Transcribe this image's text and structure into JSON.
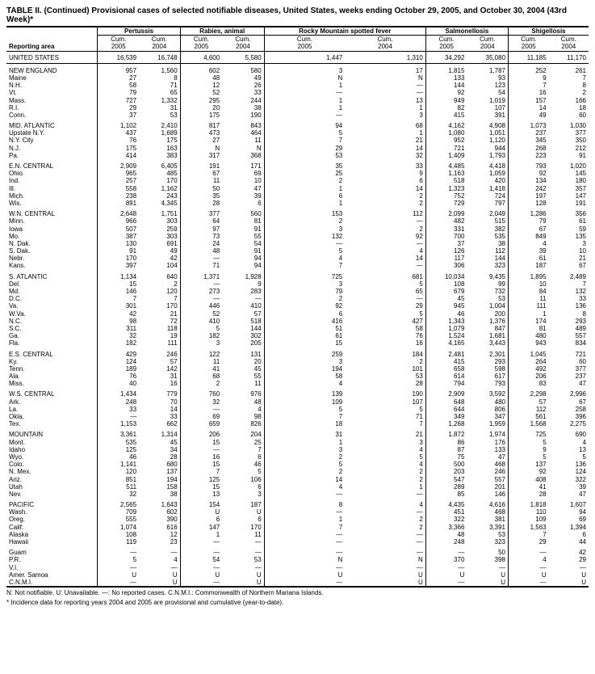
{
  "title": "TABLE II. (Continued) Provisional cases of selected notifiable diseases, United States, weeks ending October 29, 2005, and October 30, 2004 (43rd Week)*",
  "diseases": [
    "Pertussis",
    "Rabies, animal",
    "Rocky Mountain spotted fever",
    "Salmonellosis",
    "Shigellosis"
  ],
  "sub_headers": [
    "Cum. 2005",
    "Cum. 2004"
  ],
  "reporting_area_label": "Reporting area",
  "us_row": {
    "label": "UNITED STATES",
    "values": [
      "16,539",
      "16,748",
      "4,600",
      "5,580",
      "1,447",
      "1,310",
      "34,292",
      "35,080",
      "11,185",
      "11,170"
    ]
  },
  "regions": [
    {
      "header": {
        "label": "NEW ENGLAND",
        "values": [
          "957",
          "1,560",
          "602",
          "580",
          "3",
          "17",
          "1,815",
          "1,787",
          "252",
          "261"
        ]
      },
      "rows": [
        {
          "label": "Maine",
          "values": [
            "27",
            "8",
            "48",
            "49",
            "N",
            "N",
            "133",
            "93",
            "9",
            "7"
          ]
        },
        {
          "label": "N.H.",
          "values": [
            "58",
            "71",
            "12",
            "26",
            "1",
            "—",
            "144",
            "123",
            "7",
            "8"
          ]
        },
        {
          "label": "Vt.",
          "values": [
            "79",
            "65",
            "52",
            "33",
            "—",
            "—",
            "92",
            "54",
            "16",
            "2"
          ]
        },
        {
          "label": "Mass.",
          "values": [
            "727",
            "1,332",
            "295",
            "244",
            "1",
            "13",
            "949",
            "1,019",
            "157",
            "166"
          ]
        },
        {
          "label": "R.I.",
          "values": [
            "29",
            "31",
            "20",
            "38",
            "1",
            "1",
            "82",
            "107",
            "14",
            "18"
          ]
        },
        {
          "label": "Conn.",
          "values": [
            "37",
            "53",
            "175",
            "190",
            "—",
            "3",
            "415",
            "391",
            "49",
            "60"
          ]
        }
      ]
    },
    {
      "header": {
        "label": "MID. ATLANTIC",
        "values": [
          "1,102",
          "2,410",
          "817",
          "843",
          "94",
          "68",
          "4,162",
          "4,908",
          "1,073",
          "1,030"
        ]
      },
      "rows": [
        {
          "label": "Upstate N.Y.",
          "values": [
            "437",
            "1,689",
            "473",
            "464",
            "5",
            "1",
            "1,080",
            "1,051",
            "237",
            "377"
          ]
        },
        {
          "label": "N.Y. City",
          "values": [
            "76",
            "175",
            "27",
            "11",
            "7",
            "21",
            "952",
            "1,120",
            "345",
            "350"
          ]
        },
        {
          "label": "N.J.",
          "values": [
            "175",
            "163",
            "N",
            "N",
            "29",
            "14",
            "721",
            "944",
            "268",
            "212"
          ]
        },
        {
          "label": "Pa.",
          "values": [
            "414",
            "383",
            "317",
            "368",
            "53",
            "32",
            "1,409",
            "1,793",
            "223",
            "91"
          ]
        }
      ]
    },
    {
      "header": {
        "label": "E.N. CENTRAL",
        "values": [
          "2,909",
          "6,405",
          "191",
          "171",
          "35",
          "33",
          "4,485",
          "4,418",
          "793",
          "1,020"
        ]
      },
      "rows": [
        {
          "label": "Ohio",
          "values": [
            "965",
            "485",
            "67",
            "69",
            "25",
            "9",
            "1,163",
            "1,059",
            "92",
            "145"
          ]
        },
        {
          "label": "Ind.",
          "values": [
            "257",
            "170",
            "11",
            "10",
            "2",
            "6",
            "518",
            "420",
            "134",
            "180"
          ]
        },
        {
          "label": "Ill.",
          "values": [
            "558",
            "1,162",
            "50",
            "47",
            "1",
            "14",
            "1,323",
            "1,418",
            "242",
            "357"
          ]
        },
        {
          "label": "Mich.",
          "values": [
            "238",
            "243",
            "35",
            "39",
            "6",
            "2",
            "752",
            "724",
            "197",
            "147"
          ]
        },
        {
          "label": "Wis.",
          "values": [
            "891",
            "4,345",
            "28",
            "6",
            "1",
            "2",
            "729",
            "797",
            "128",
            "191"
          ]
        }
      ]
    },
    {
      "header": {
        "label": "W.N. CENTRAL",
        "values": [
          "2,648",
          "1,751",
          "377",
          "560",
          "153",
          "112",
          "2,099",
          "2,049",
          "1,286",
          "356"
        ]
      },
      "rows": [
        {
          "label": "Minn.",
          "values": [
            "966",
            "303",
            "64",
            "81",
            "2",
            "—",
            "482",
            "515",
            "79",
            "61"
          ]
        },
        {
          "label": "Iowa",
          "values": [
            "507",
            "259",
            "97",
            "91",
            "3",
            "2",
            "331",
            "382",
            "67",
            "59"
          ]
        },
        {
          "label": "Mo.",
          "values": [
            "387",
            "303",
            "73",
            "55",
            "132",
            "92",
            "700",
            "535",
            "849",
            "135"
          ]
        },
        {
          "label": "N. Dak.",
          "values": [
            "130",
            "691",
            "24",
            "54",
            "—",
            "—",
            "37",
            "38",
            "4",
            "3"
          ]
        },
        {
          "label": "S. Dak.",
          "values": [
            "91",
            "49",
            "48",
            "91",
            "5",
            "4",
            "126",
            "112",
            "39",
            "10"
          ]
        },
        {
          "label": "Nebr.",
          "values": [
            "170",
            "42",
            "—",
            "94",
            "4",
            "14",
            "117",
            "144",
            "61",
            "21"
          ]
        },
        {
          "label": "Kans.",
          "values": [
            "397",
            "104",
            "71",
            "94",
            "7",
            "—",
            "306",
            "323",
            "187",
            "67"
          ]
        }
      ]
    },
    {
      "header": {
        "label": "S. ATLANTIC",
        "values": [
          "1,134",
          "640",
          "1,371",
          "1,928",
          "725",
          "681",
          "10,034",
          "9,435",
          "1,895",
          "2,489"
        ]
      },
      "rows": [
        {
          "label": "Del.",
          "values": [
            "15",
            "2",
            "—",
            "9",
            "3",
            "5",
            "108",
            "99",
            "10",
            "7"
          ]
        },
        {
          "label": "Md.",
          "values": [
            "146",
            "120",
            "273",
            "283",
            "79",
            "65",
            "679",
            "732",
            "84",
            "132"
          ]
        },
        {
          "label": "D.C.",
          "values": [
            "7",
            "7",
            "—",
            "—",
            "2",
            "—",
            "45",
            "53",
            "11",
            "33"
          ]
        },
        {
          "label": "Va.",
          "values": [
            "301",
            "170",
            "446",
            "410",
            "92",
            "29",
            "945",
            "1,004",
            "111",
            "136"
          ]
        },
        {
          "label": "W.Va.",
          "values": [
            "42",
            "21",
            "52",
            "57",
            "6",
            "5",
            "46",
            "200",
            "1",
            "8"
          ]
        },
        {
          "label": "N.C.",
          "values": [
            "98",
            "72",
            "410",
            "518",
            "416",
            "427",
            "1,343",
            "1,376",
            "174",
            "293"
          ]
        },
        {
          "label": "S.C.",
          "values": [
            "311",
            "118",
            "5",
            "144",
            "51",
            "58",
            "1,079",
            "847",
            "81",
            "489"
          ]
        },
        {
          "label": "Ga.",
          "values": [
            "32",
            "19",
            "182",
            "302",
            "61",
            "76",
            "1,524",
            "1,681",
            "480",
            "557"
          ]
        },
        {
          "label": "Fla.",
          "values": [
            "182",
            "111",
            "3",
            "205",
            "15",
            "16",
            "4,165",
            "3,443",
            "943",
            "834"
          ]
        }
      ]
    },
    {
      "header": {
        "label": "E.S. CENTRAL",
        "values": [
          "429",
          "246",
          "122",
          "131",
          "259",
          "184",
          "2,481",
          "2,301",
          "1,045",
          "721"
        ]
      },
      "rows": [
        {
          "label": "Ky.",
          "values": [
            "124",
            "57",
            "11",
            "20",
            "3",
            "2",
            "415",
            "293",
            "264",
            "60"
          ]
        },
        {
          "label": "Tenn.",
          "values": [
            "189",
            "142",
            "41",
            "45",
            "194",
            "101",
            "658",
            "598",
            "492",
            "377"
          ]
        },
        {
          "label": "Ala.",
          "values": [
            "76",
            "31",
            "68",
            "55",
            "58",
            "53",
            "614",
            "617",
            "206",
            "237"
          ]
        },
        {
          "label": "Miss.",
          "values": [
            "40",
            "16",
            "2",
            "11",
            "4",
            "28",
            "794",
            "793",
            "83",
            "47"
          ]
        }
      ]
    },
    {
      "header": {
        "label": "W.S. CENTRAL",
        "values": [
          "1,434",
          "779",
          "760",
          "976",
          "139",
          "190",
          "2,909",
          "3,592",
          "2,298",
          "2,996"
        ]
      },
      "rows": [
        {
          "label": "Ark.",
          "values": [
            "248",
            "70",
            "32",
            "48",
            "109",
            "107",
            "648",
            "480",
            "57",
            "67"
          ]
        },
        {
          "label": "La.",
          "values": [
            "33",
            "14",
            "—",
            "4",
            "5",
            "5",
            "644",
            "806",
            "112",
            "258"
          ]
        },
        {
          "label": "Okla.",
          "values": [
            "—",
            "33",
            "69",
            "98",
            "7",
            "71",
            "349",
            "347",
            "561",
            "396"
          ]
        },
        {
          "label": "Tex.",
          "values": [
            "1,153",
            "662",
            "659",
            "826",
            "18",
            "7",
            "1,268",
            "1,959",
            "1,568",
            "2,275"
          ]
        }
      ]
    },
    {
      "header": {
        "label": "MOUNTAIN",
        "values": [
          "3,361",
          "1,314",
          "206",
          "204",
          "31",
          "21",
          "1,872",
          "1,974",
          "725",
          "690"
        ]
      },
      "rows": [
        {
          "label": "Mont.",
          "values": [
            "535",
            "45",
            "15",
            "25",
            "1",
            "3",
            "86",
            "176",
            "5",
            "4"
          ]
        },
        {
          "label": "Idaho",
          "values": [
            "125",
            "34",
            "—",
            "7",
            "3",
            "4",
            "87",
            "133",
            "9",
            "13"
          ]
        },
        {
          "label": "Wyo.",
          "values": [
            "46",
            "28",
            "16",
            "6",
            "2",
            "5",
            "75",
            "47",
            "5",
            "5"
          ]
        },
        {
          "label": "Colo.",
          "values": [
            "1,141",
            "680",
            "15",
            "46",
            "5",
            "4",
            "500",
            "468",
            "137",
            "136"
          ]
        },
        {
          "label": "N. Mex.",
          "values": [
            "120",
            "137",
            "7",
            "5",
            "2",
            "2",
            "203",
            "246",
            "92",
            "124"
          ]
        },
        {
          "label": "Ariz.",
          "values": [
            "851",
            "194",
            "125",
            "106",
            "14",
            "2",
            "547",
            "557",
            "408",
            "322"
          ]
        },
        {
          "label": "Utah",
          "values": [
            "511",
            "158",
            "15",
            "6",
            "4",
            "1",
            "289",
            "201",
            "41",
            "39"
          ]
        },
        {
          "label": "Nev.",
          "values": [
            "32",
            "38",
            "13",
            "3",
            "—",
            "—",
            "85",
            "146",
            "28",
            "47"
          ]
        }
      ]
    },
    {
      "header": {
        "label": "PACIFIC",
        "values": [
          "2,565",
          "1,643",
          "154",
          "187",
          "8",
          "4",
          "4,435",
          "4,616",
          "1,818",
          "1,607"
        ]
      },
      "rows": [
        {
          "label": "Wash.",
          "values": [
            "709",
            "602",
            "U",
            "U",
            "—",
            "—",
            "451",
            "468",
            "110",
            "94"
          ]
        },
        {
          "label": "Oreg.",
          "values": [
            "555",
            "390",
            "6",
            "6",
            "1",
            "2",
            "322",
            "381",
            "109",
            "69"
          ]
        },
        {
          "label": "Calif.",
          "values": [
            "1,074",
            "616",
            "147",
            "170",
            "7",
            "2",
            "3,366",
            "3,391",
            "1,563",
            "1,394"
          ]
        },
        {
          "label": "Alaska",
          "values": [
            "108",
            "12",
            "1",
            "11",
            "—",
            "—",
            "48",
            "53",
            "7",
            "6"
          ]
        },
        {
          "label": "Hawaii",
          "values": [
            "119",
            "23",
            "—",
            "—",
            "—",
            "—",
            "248",
            "323",
            "29",
            "44"
          ]
        }
      ]
    },
    {
      "header": {
        "label": "Guam",
        "values": [
          "—",
          "—",
          "—",
          "—",
          "—",
          "—",
          "—",
          "50",
          "—",
          "42"
        ]
      },
      "rows": [
        {
          "label": "P.R.",
          "values": [
            "5",
            "4",
            "54",
            "53",
            "N",
            "N",
            "370",
            "398",
            "4",
            "29"
          ]
        },
        {
          "label": "V.I.",
          "values": [
            "—",
            "—",
            "—",
            "—",
            "—",
            "—",
            "—",
            "—",
            "—",
            "—"
          ]
        },
        {
          "label": "Amer. Samoa",
          "values": [
            "U",
            "U",
            "U",
            "U",
            "U",
            "U",
            "U",
            "U",
            "U",
            "U"
          ]
        },
        {
          "label": "C.N.M.I.",
          "values": [
            "—",
            "U",
            "—",
            "U",
            "—",
            "U",
            "—",
            "U",
            "—",
            "U"
          ]
        }
      ]
    }
  ],
  "footnotes": [
    "N: Not notifiable.     U: Unavailable.     —: No reported cases.     C.N.M.I.: Commonwealth of Northern Mariana Islands.",
    "* Incidence data for reporting years 2004 and 2005 are provisional and cumulative (year-to-date)."
  ]
}
